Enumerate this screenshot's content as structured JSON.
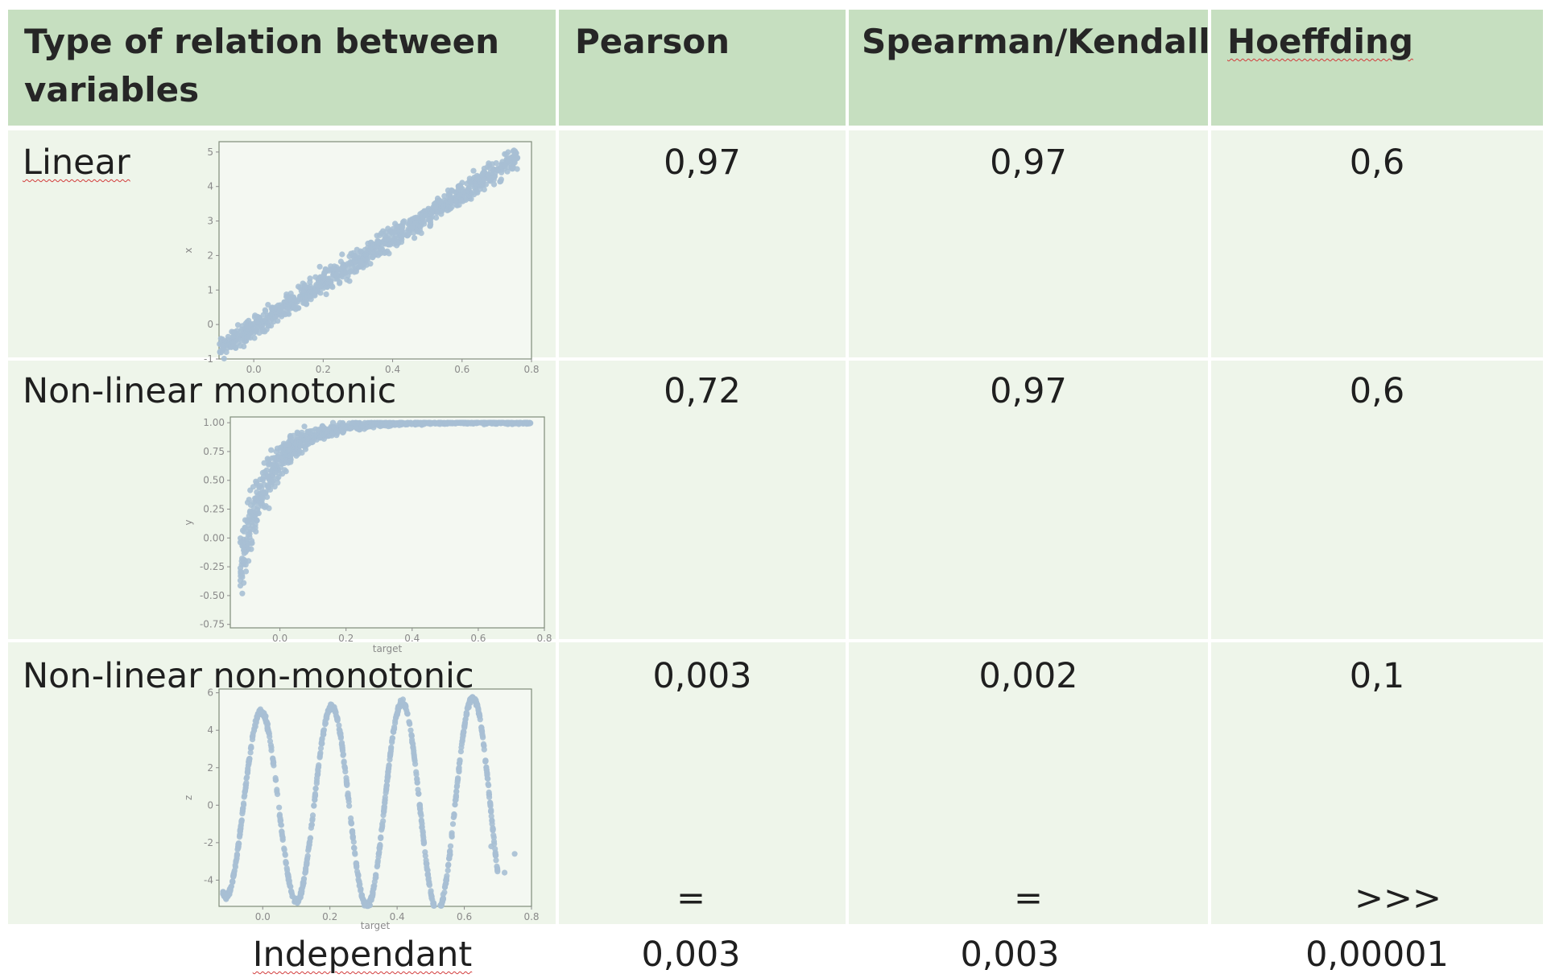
{
  "table": {
    "headers": {
      "relation": "Type of relation between variables",
      "pearson": "Pearson",
      "spearman": "Spearman/Kendall",
      "hoeffding": "Hoeffding"
    },
    "rows": [
      {
        "label": "Linear",
        "pearson": "0,97",
        "spearman": "0,97",
        "hoeffding": "0,6"
      },
      {
        "label": "Non-linear monotonic",
        "pearson": "0,72",
        "spearman": "0,97",
        "hoeffding": "0,6"
      },
      {
        "label": "Non-linear non-monotonic",
        "pearson": "0,003",
        "spearman": "0,002",
        "hoeffding": "0,1",
        "pearson_cmp": "=",
        "spearman_cmp": "=",
        "hoeffding_cmp": ">>>"
      }
    ],
    "footer": {
      "label": "Independant",
      "pearson": "0,003",
      "spearman": "0,003",
      "hoeffding": "0,00001"
    }
  },
  "chart_data": [
    {
      "type": "scatter",
      "title": "",
      "xlabel": "",
      "ylabel": "x",
      "xlim": [
        -0.1,
        0.8
      ],
      "ylim": [
        -1,
        5.3
      ],
      "xticks": [
        "0.0",
        "0.2",
        "0.4",
        "0.6",
        "0.8"
      ],
      "yticks": [
        "-1",
        "0",
        "1",
        "2",
        "3",
        "4",
        "5"
      ],
      "relation": "linear",
      "trend": {
        "x": [
          -0.1,
          0.8
        ],
        "y": [
          -0.7,
          5.1
        ]
      },
      "color": "#a7bfd4"
    },
    {
      "type": "scatter",
      "title": "",
      "xlabel": "target",
      "ylabel": "y",
      "xlim": [
        -0.15,
        0.8
      ],
      "ylim": [
        -0.78,
        1.05
      ],
      "xticks": [
        "0.0",
        "0.2",
        "0.4",
        "0.6",
        "0.8"
      ],
      "yticks": [
        "-0.75",
        "-0.50",
        "-0.25",
        "0.00",
        "0.25",
        "0.50",
        "0.75",
        "1.00"
      ],
      "relation": "monotonic-saturating",
      "color": "#a7bfd4"
    },
    {
      "type": "scatter",
      "title": "",
      "xlabel": "target",
      "ylabel": "z",
      "xlim": [
        -0.13,
        0.8
      ],
      "ylim": [
        -5.4,
        6.2
      ],
      "xticks": [
        "0.0",
        "0.2",
        "0.4",
        "0.6",
        "0.8"
      ],
      "yticks": [
        "-4",
        "-2",
        "0",
        "2",
        "4",
        "6"
      ],
      "relation": "sinusoidal",
      "color": "#a7bfd4"
    }
  ]
}
